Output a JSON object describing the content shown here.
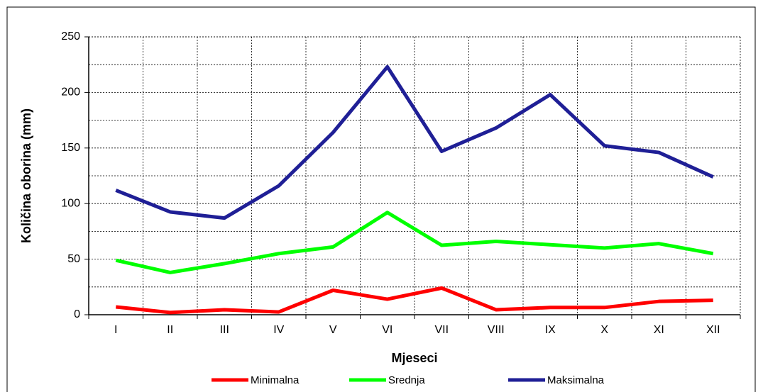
{
  "chart_data": {
    "type": "line",
    "x_label": "Mjeseci",
    "y_label": "Količina oborina (mm)",
    "categories": [
      "I",
      "II",
      "III",
      "IV",
      "V",
      "VI",
      "VII",
      "VIII",
      "IX",
      "X",
      "XI",
      "XII"
    ],
    "series": [
      {
        "name": "Minimalna",
        "color": "#ff0000",
        "values": [
          7,
          2,
          4.5,
          2.5,
          22,
          14,
          24,
          4.5,
          6.5,
          6.5,
          12,
          13
        ]
      },
      {
        "name": "Srednja",
        "color": "#00ff00",
        "values": [
          49,
          38,
          46,
          55,
          61,
          92,
          62.5,
          66,
          63,
          60,
          64,
          55
        ]
      },
      {
        "name": "Maksimalna",
        "color": "#1f1f96",
        "values": [
          112,
          92.5,
          87,
          116,
          164,
          223,
          147,
          168,
          198,
          152,
          146,
          124
        ]
      }
    ],
    "ylim": [
      0,
      250
    ],
    "yticks": [
      0,
      50,
      100,
      150,
      200,
      250
    ],
    "grid": true,
    "legend": "bottom"
  }
}
